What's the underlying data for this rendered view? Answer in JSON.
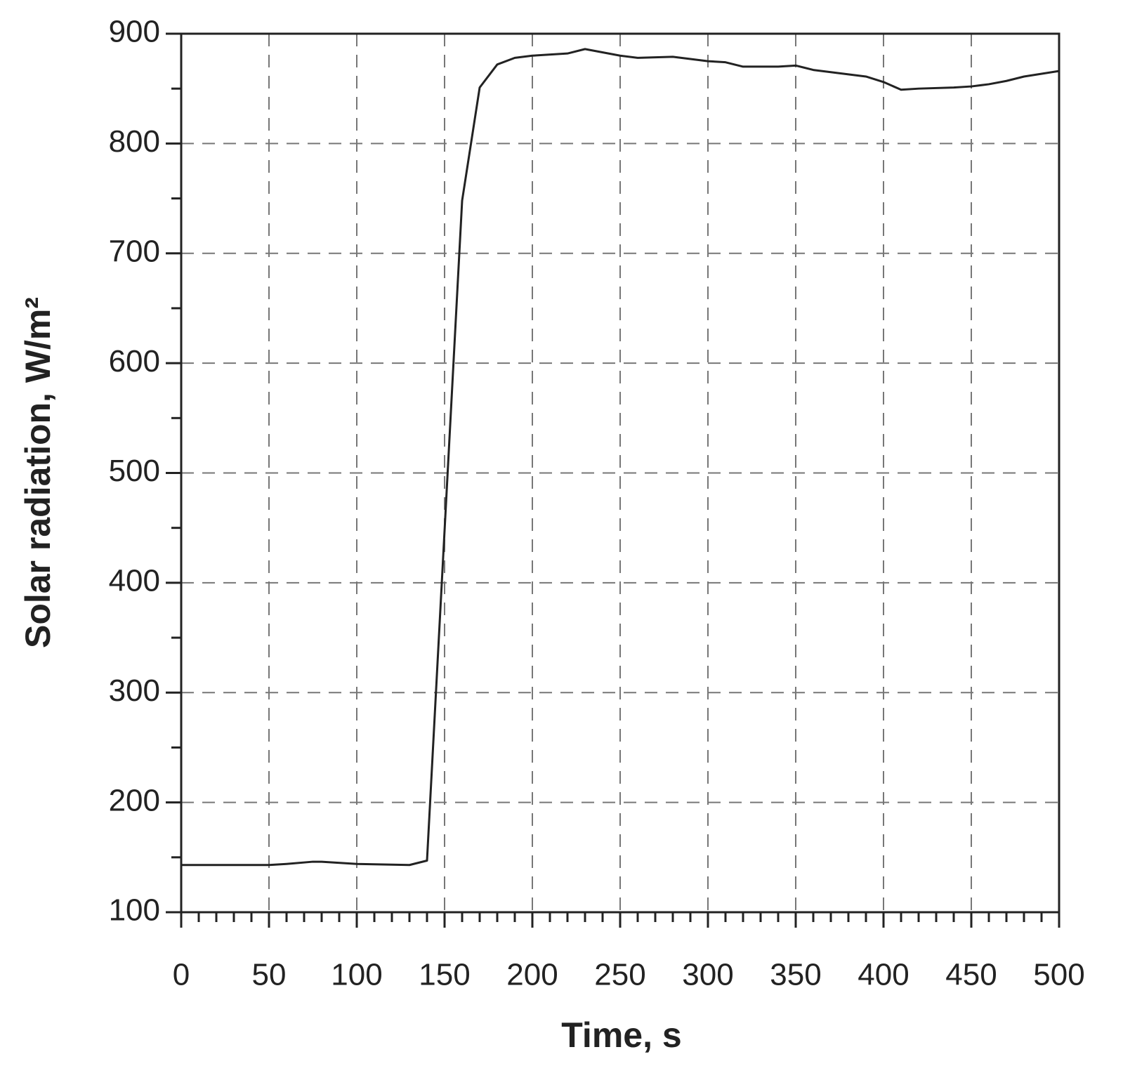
{
  "chart_data": {
    "type": "line",
    "x_label": "Time, s",
    "y_label": "Solar radiation, W/m²",
    "x": [
      0,
      10,
      50,
      60,
      75,
      80,
      100,
      130,
      140,
      160,
      170,
      180,
      190,
      200,
      220,
      230,
      250,
      260,
      280,
      300,
      310,
      320,
      340,
      350,
      360,
      380,
      390,
      400,
      410,
      420,
      440,
      450,
      460,
      470,
      480,
      500
    ],
    "series": [
      {
        "name": "Solar radiation",
        "color": "#222222",
        "values": [
          143,
          143,
          143,
          144,
          146,
          146,
          144,
          143,
          147,
          748,
          851,
          872,
          878,
          880,
          882,
          886,
          880,
          878,
          879,
          875,
          874,
          870,
          870,
          871,
          867,
          863,
          861,
          856,
          849,
          850,
          851,
          852,
          854,
          857,
          861,
          866
        ]
      }
    ],
    "xlim": [
      0,
      500
    ],
    "xticks": [
      0,
      50,
      100,
      150,
      200,
      250,
      300,
      350,
      400,
      450,
      500
    ],
    "ylim": [
      100,
      900
    ],
    "yticks": [
      100,
      200,
      300,
      400,
      500,
      600,
      700,
      800,
      900
    ],
    "grid": true
  }
}
